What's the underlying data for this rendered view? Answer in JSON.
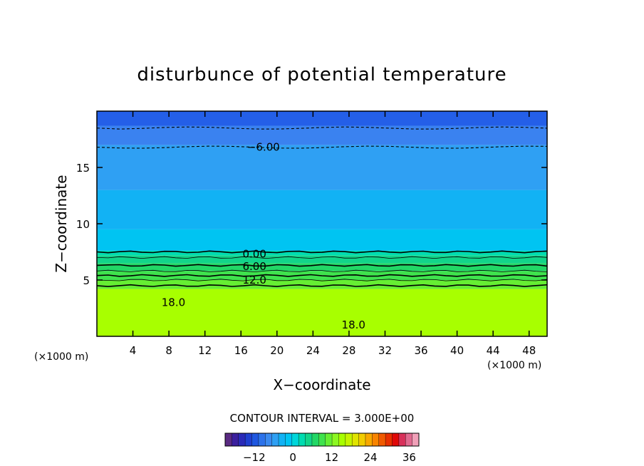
{
  "chart_data": {
    "type": "heatmap",
    "title": "disturbunce of potential temperature",
    "xlabel": "X−coordinate",
    "ylabel": "Z−coordinate",
    "x_unit_left": "(×1000 m)",
    "x_unit_right": "(×1000 m)",
    "xlim": [
      0,
      50
    ],
    "ylim": [
      0,
      20
    ],
    "x_ticks": [
      4,
      8,
      12,
      16,
      20,
      24,
      28,
      32,
      36,
      40,
      44,
      48
    ],
    "x_tick_labels": [
      "4",
      "8",
      "12",
      "16",
      "20",
      "24",
      "28",
      "32",
      "36",
      "40",
      "44",
      "48"
    ],
    "y_ticks": [
      5,
      10,
      15
    ],
    "y_tick_labels": [
      "5",
      "10",
      "15"
    ],
    "contour_labels": [
      {
        "text": "−6.00",
        "x": 18.5,
        "y": 16.8
      },
      {
        "text": "0.00",
        "x": 17.5,
        "y": 7.3
      },
      {
        "text": "6.00",
        "x": 17.5,
        "y": 6.2
      },
      {
        "text": "12.0",
        "x": 17.5,
        "y": 5.0
      },
      {
        "text": "18.0",
        "x": 8.5,
        "y": 3.0
      },
      {
        "text": "18.0",
        "x": 28.5,
        "y": 1.0
      }
    ],
    "value_bands": [
      {
        "z_from": 0,
        "z_to": 4.2,
        "value": 19,
        "color": "#a8ff00"
      },
      {
        "z_from": 4.2,
        "z_to": 5.0,
        "value": 13,
        "color": "#66ee33"
      },
      {
        "z_from": 5.0,
        "z_to": 5.8,
        "value": 10,
        "color": "#3fe34d"
      },
      {
        "z_from": 5.8,
        "z_to": 6.5,
        "value": 7,
        "color": "#22d766"
      },
      {
        "z_from": 6.5,
        "z_to": 7.2,
        "value": 4,
        "color": "#12d48a"
      },
      {
        "z_from": 7.2,
        "z_to": 7.6,
        "value": 1,
        "color": "#00dcb0"
      },
      {
        "z_from": 7.6,
        "z_to": 9.5,
        "value": -1,
        "color": "#00c4f2"
      },
      {
        "z_from": 9.5,
        "z_to": 13.0,
        "value": -3,
        "color": "#12b2f4"
      },
      {
        "z_from": 13.0,
        "z_to": 17.0,
        "value": -5,
        "color": "#2fa0f3"
      },
      {
        "z_from": 17.0,
        "z_to": 18.7,
        "value": -7,
        "color": "#3a82f0"
      },
      {
        "z_from": 18.7,
        "z_to": 20.0,
        "value": -9,
        "color": "#245fe8"
      }
    ],
    "solid_contours_z": [
      7.5,
      7.0,
      6.3,
      5.8,
      5.4,
      5.0,
      4.5
    ],
    "dashed_contours_z": [
      16.8,
      18.5
    ],
    "contour_interval_text": "CONTOUR INTERVAL = 3.000E+00",
    "colorbar": {
      "min": -21,
      "max": 39,
      "tick_values": [
        -12,
        0,
        12,
        24,
        36
      ],
      "tick_labels": [
        "−12",
        "0",
        "12",
        "24",
        "36"
      ],
      "colors": [
        "#5a2a82",
        "#3b1f9e",
        "#2a2ab8",
        "#1f3fd0",
        "#1f57e0",
        "#2c72ea",
        "#3a8af0",
        "#2fa0f3",
        "#12b2f4",
        "#00c4f2",
        "#00d6da",
        "#00dcb0",
        "#12d48a",
        "#22d766",
        "#3fe34d",
        "#66ee33",
        "#8cf722",
        "#a8ff00",
        "#c6f400",
        "#e0e400",
        "#f2cc00",
        "#f8a800",
        "#f88400",
        "#f05a00",
        "#e83000",
        "#e00808",
        "#d8305a",
        "#e06a90",
        "#f0a0b8"
      ]
    }
  }
}
